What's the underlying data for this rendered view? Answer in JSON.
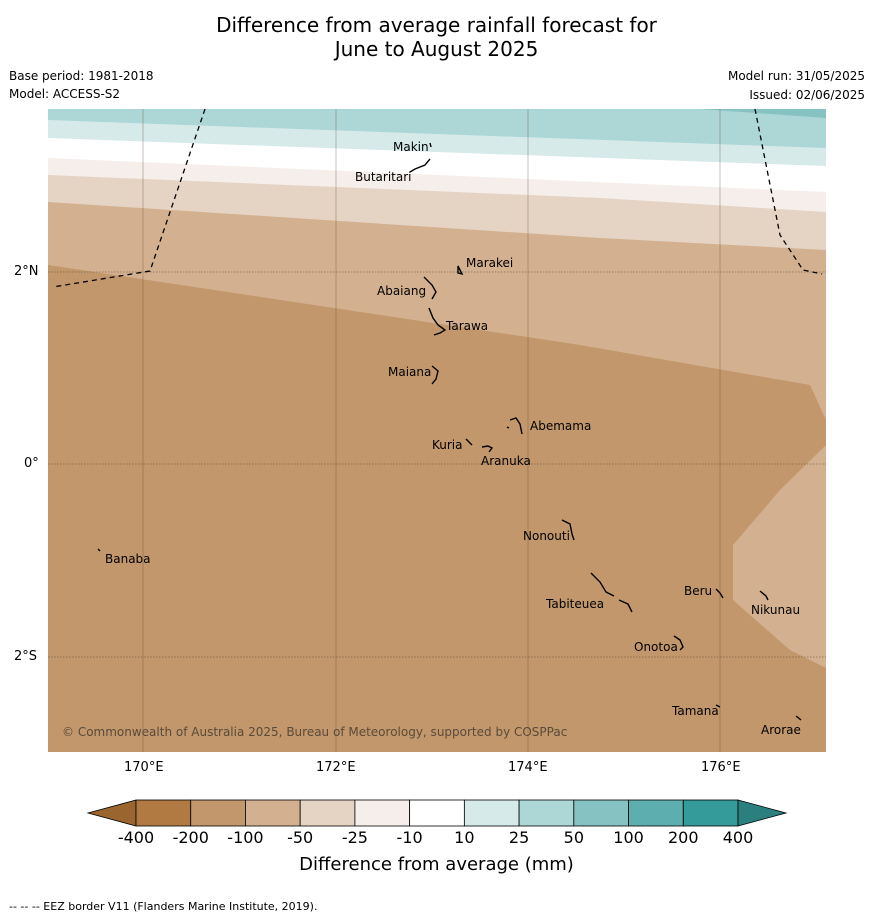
{
  "title_line1": "Difference from average rainfall forecast for",
  "title_line2": "June to August 2025",
  "base_period": "Base period: 1981-2018",
  "model": "Model: ACCESS-S2",
  "model_run": "Model run: 31/05/2025",
  "issued": "Issued: 02/06/2025",
  "lat_ticks": [
    "2°N",
    "0°",
    "2°S"
  ],
  "lon_ticks": [
    "170°E",
    "172°E",
    "174°E",
    "176°E"
  ],
  "places": [
    {
      "name": "Makin"
    },
    {
      "name": "Butaritari"
    },
    {
      "name": "Marakei"
    },
    {
      "name": "Abaiang"
    },
    {
      "name": "Tarawa"
    },
    {
      "name": "Maiana"
    },
    {
      "name": "Abemama"
    },
    {
      "name": "Kuria"
    },
    {
      "name": "Aranuka"
    },
    {
      "name": "Nonouti"
    },
    {
      "name": "Banaba"
    },
    {
      "name": "Beru"
    },
    {
      "name": "Tabiteuea"
    },
    {
      "name": "Nikunau"
    },
    {
      "name": "Onotoa"
    },
    {
      "name": "Tamana"
    },
    {
      "name": "Arorae"
    }
  ],
  "copyright": "© Commonwealth of Australia 2025, Bureau of Meteorology, supported by COSPPac",
  "colorbar": {
    "labels": [
      "-400",
      "-200",
      "-100",
      "-50",
      "-25",
      "-10",
      "10",
      "25",
      "50",
      "100",
      "200",
      "400"
    ],
    "colors": [
      "#b07a42",
      "#c2976b",
      "#d3b08f",
      "#e5d3c3",
      "#f5eeea",
      "#ffffff",
      "#d6eaea",
      "#add6d6",
      "#85c2c1",
      "#5daeae",
      "#349a9a"
    ],
    "low_extend_color": "#9b6530",
    "high_extend_color": "#2b7f7f",
    "title": "Difference from average (mm)"
  },
  "footnote": "--  --  -- EEZ border V11 (Flanders Marine Institute, 2019)."
}
